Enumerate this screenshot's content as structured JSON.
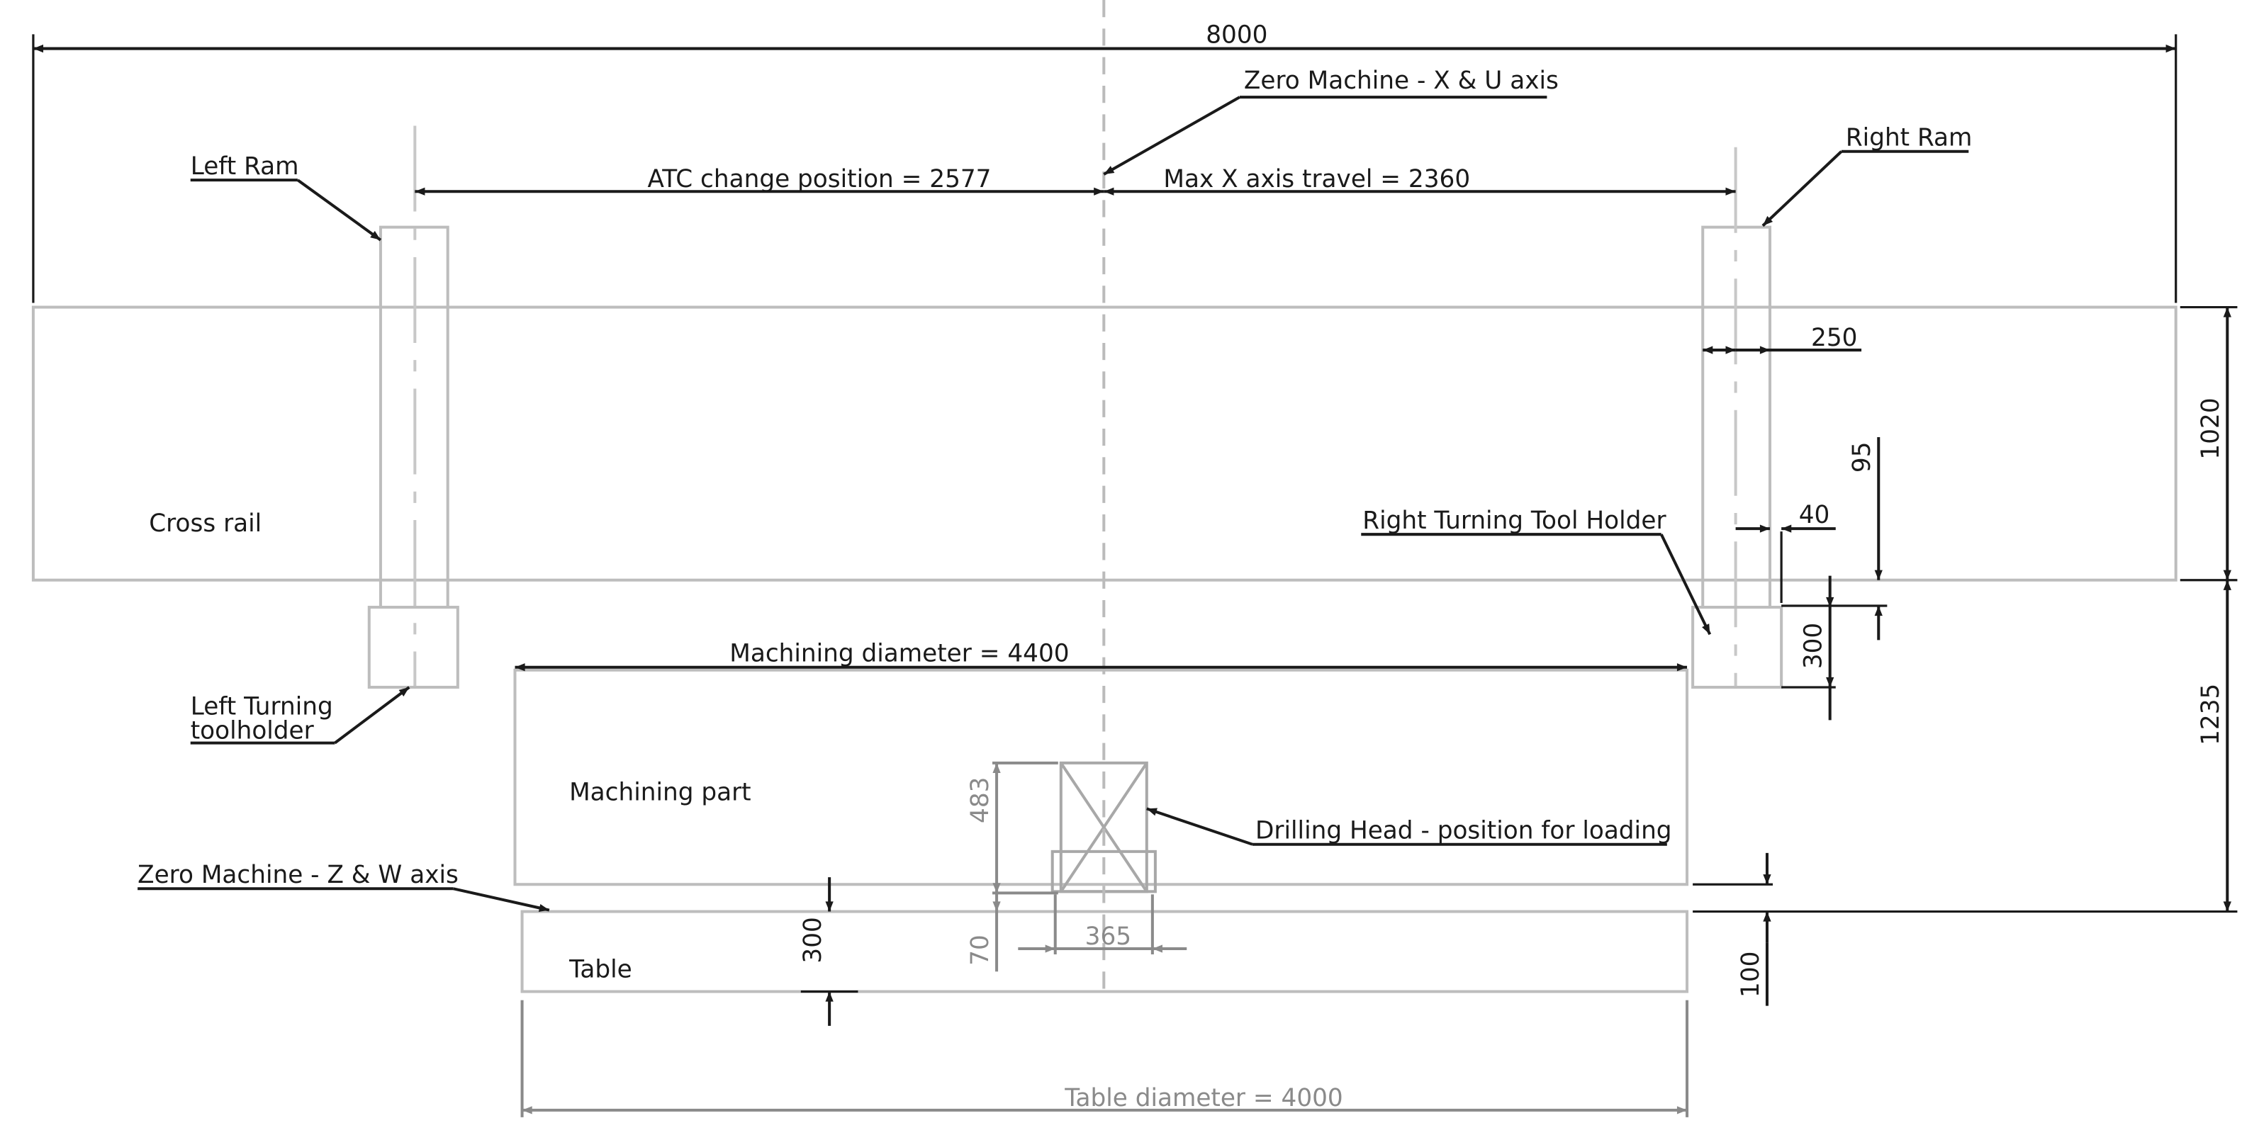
{
  "dimensions": {
    "overall_width": "8000",
    "atc_change": "ATC change position = 2577",
    "max_x_travel": "Max X axis travel = 2360",
    "ram_width": "250",
    "crossrail_height": "1020",
    "dim_95": "95",
    "dim_40": "40",
    "holder_height": "300",
    "machining_diameter": "Machining diameter = 4400",
    "dim_1235": "1235",
    "drill_height": "483",
    "drill_offset": "70",
    "drill_width": "365",
    "table_height": "300",
    "dim_100": "100",
    "table_diameter": "Table diameter = 4000"
  },
  "labels": {
    "zero_xu": "Zero Machine - X & U axis",
    "left_ram": "Left Ram",
    "right_ram": "Right Ram",
    "cross_rail": "Cross rail",
    "right_turning": "Right Turning Tool Holder",
    "left_turning_1": "Left Turning",
    "left_turning_2": "toolholder",
    "machining_part": "Machining part",
    "drilling_head": "Drilling Head  - position for loading",
    "zero_zw": "Zero Machine - Z & W axis",
    "table": "Table"
  },
  "colors": {
    "line": "#1a1a1a",
    "object_outline": "#bdbdbd",
    "secondary_dimension": "#8a8a8a"
  }
}
